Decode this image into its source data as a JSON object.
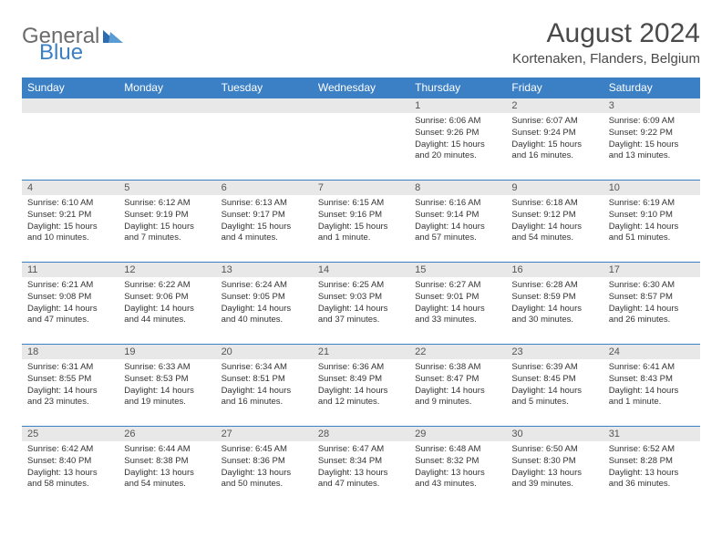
{
  "logo": {
    "general": "General",
    "blue": "Blue"
  },
  "title": "August 2024",
  "location": "Kortenaken, Flanders, Belgium",
  "colors": {
    "header_bg": "#3b7fc4",
    "header_text": "#ffffff",
    "daynum_bg": "#e8e8e8",
    "border": "#3b7fc4",
    "logo_gray": "#6b6b6b",
    "logo_blue": "#3b7fc4"
  },
  "weekdays": [
    "Sunday",
    "Monday",
    "Tuesday",
    "Wednesday",
    "Thursday",
    "Friday",
    "Saturday"
  ],
  "weeks": [
    [
      null,
      null,
      null,
      null,
      {
        "n": "1",
        "sunrise": "Sunrise: 6:06 AM",
        "sunset": "Sunset: 9:26 PM",
        "day": "Daylight: 15 hours and 20 minutes."
      },
      {
        "n": "2",
        "sunrise": "Sunrise: 6:07 AM",
        "sunset": "Sunset: 9:24 PM",
        "day": "Daylight: 15 hours and 16 minutes."
      },
      {
        "n": "3",
        "sunrise": "Sunrise: 6:09 AM",
        "sunset": "Sunset: 9:22 PM",
        "day": "Daylight: 15 hours and 13 minutes."
      }
    ],
    [
      {
        "n": "4",
        "sunrise": "Sunrise: 6:10 AM",
        "sunset": "Sunset: 9:21 PM",
        "day": "Daylight: 15 hours and 10 minutes."
      },
      {
        "n": "5",
        "sunrise": "Sunrise: 6:12 AM",
        "sunset": "Sunset: 9:19 PM",
        "day": "Daylight: 15 hours and 7 minutes."
      },
      {
        "n": "6",
        "sunrise": "Sunrise: 6:13 AM",
        "sunset": "Sunset: 9:17 PM",
        "day": "Daylight: 15 hours and 4 minutes."
      },
      {
        "n": "7",
        "sunrise": "Sunrise: 6:15 AM",
        "sunset": "Sunset: 9:16 PM",
        "day": "Daylight: 15 hours and 1 minute."
      },
      {
        "n": "8",
        "sunrise": "Sunrise: 6:16 AM",
        "sunset": "Sunset: 9:14 PM",
        "day": "Daylight: 14 hours and 57 minutes."
      },
      {
        "n": "9",
        "sunrise": "Sunrise: 6:18 AM",
        "sunset": "Sunset: 9:12 PM",
        "day": "Daylight: 14 hours and 54 minutes."
      },
      {
        "n": "10",
        "sunrise": "Sunrise: 6:19 AM",
        "sunset": "Sunset: 9:10 PM",
        "day": "Daylight: 14 hours and 51 minutes."
      }
    ],
    [
      {
        "n": "11",
        "sunrise": "Sunrise: 6:21 AM",
        "sunset": "Sunset: 9:08 PM",
        "day": "Daylight: 14 hours and 47 minutes."
      },
      {
        "n": "12",
        "sunrise": "Sunrise: 6:22 AM",
        "sunset": "Sunset: 9:06 PM",
        "day": "Daylight: 14 hours and 44 minutes."
      },
      {
        "n": "13",
        "sunrise": "Sunrise: 6:24 AM",
        "sunset": "Sunset: 9:05 PM",
        "day": "Daylight: 14 hours and 40 minutes."
      },
      {
        "n": "14",
        "sunrise": "Sunrise: 6:25 AM",
        "sunset": "Sunset: 9:03 PM",
        "day": "Daylight: 14 hours and 37 minutes."
      },
      {
        "n": "15",
        "sunrise": "Sunrise: 6:27 AM",
        "sunset": "Sunset: 9:01 PM",
        "day": "Daylight: 14 hours and 33 minutes."
      },
      {
        "n": "16",
        "sunrise": "Sunrise: 6:28 AM",
        "sunset": "Sunset: 8:59 PM",
        "day": "Daylight: 14 hours and 30 minutes."
      },
      {
        "n": "17",
        "sunrise": "Sunrise: 6:30 AM",
        "sunset": "Sunset: 8:57 PM",
        "day": "Daylight: 14 hours and 26 minutes."
      }
    ],
    [
      {
        "n": "18",
        "sunrise": "Sunrise: 6:31 AM",
        "sunset": "Sunset: 8:55 PM",
        "day": "Daylight: 14 hours and 23 minutes."
      },
      {
        "n": "19",
        "sunrise": "Sunrise: 6:33 AM",
        "sunset": "Sunset: 8:53 PM",
        "day": "Daylight: 14 hours and 19 minutes."
      },
      {
        "n": "20",
        "sunrise": "Sunrise: 6:34 AM",
        "sunset": "Sunset: 8:51 PM",
        "day": "Daylight: 14 hours and 16 minutes."
      },
      {
        "n": "21",
        "sunrise": "Sunrise: 6:36 AM",
        "sunset": "Sunset: 8:49 PM",
        "day": "Daylight: 14 hours and 12 minutes."
      },
      {
        "n": "22",
        "sunrise": "Sunrise: 6:38 AM",
        "sunset": "Sunset: 8:47 PM",
        "day": "Daylight: 14 hours and 9 minutes."
      },
      {
        "n": "23",
        "sunrise": "Sunrise: 6:39 AM",
        "sunset": "Sunset: 8:45 PM",
        "day": "Daylight: 14 hours and 5 minutes."
      },
      {
        "n": "24",
        "sunrise": "Sunrise: 6:41 AM",
        "sunset": "Sunset: 8:43 PM",
        "day": "Daylight: 14 hours and 1 minute."
      }
    ],
    [
      {
        "n": "25",
        "sunrise": "Sunrise: 6:42 AM",
        "sunset": "Sunset: 8:40 PM",
        "day": "Daylight: 13 hours and 58 minutes."
      },
      {
        "n": "26",
        "sunrise": "Sunrise: 6:44 AM",
        "sunset": "Sunset: 8:38 PM",
        "day": "Daylight: 13 hours and 54 minutes."
      },
      {
        "n": "27",
        "sunrise": "Sunrise: 6:45 AM",
        "sunset": "Sunset: 8:36 PM",
        "day": "Daylight: 13 hours and 50 minutes."
      },
      {
        "n": "28",
        "sunrise": "Sunrise: 6:47 AM",
        "sunset": "Sunset: 8:34 PM",
        "day": "Daylight: 13 hours and 47 minutes."
      },
      {
        "n": "29",
        "sunrise": "Sunrise: 6:48 AM",
        "sunset": "Sunset: 8:32 PM",
        "day": "Daylight: 13 hours and 43 minutes."
      },
      {
        "n": "30",
        "sunrise": "Sunrise: 6:50 AM",
        "sunset": "Sunset: 8:30 PM",
        "day": "Daylight: 13 hours and 39 minutes."
      },
      {
        "n": "31",
        "sunrise": "Sunrise: 6:52 AM",
        "sunset": "Sunset: 8:28 PM",
        "day": "Daylight: 13 hours and 36 minutes."
      }
    ]
  ]
}
